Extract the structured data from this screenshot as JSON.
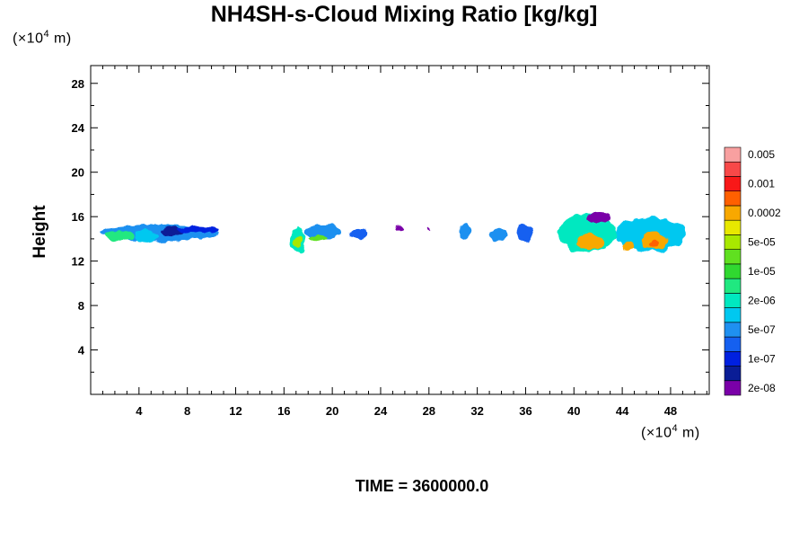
{
  "chart_data": {
    "type": "heatmap",
    "title": "NH4SH-s-Cloud Mixing Ratio [kg/kg]",
    "ylabel": "Height",
    "xlabel": "",
    "x_unit": {
      "prefix": "(×10",
      "exp": "4",
      "suffix": " m)"
    },
    "y_unit": {
      "prefix": "(×10",
      "exp": "4",
      "suffix": " m)"
    },
    "xlim": [
      0,
      51.2
    ],
    "ylim": [
      0,
      29.6
    ],
    "x_ticks": [
      4,
      8,
      12,
      16,
      20,
      24,
      28,
      32,
      36,
      40,
      44,
      48
    ],
    "y_ticks": [
      4,
      8,
      12,
      16,
      20,
      24,
      28
    ],
    "time_label": "TIME = 3600000.0",
    "colorbar": {
      "colors": [
        "#7a00a8",
        "#0a1d96",
        "#0020e0",
        "#1560f0",
        "#1f90f0",
        "#00c8f0",
        "#00e8c0",
        "#20e880",
        "#30d830",
        "#60e020",
        "#a8e800",
        "#e8e800",
        "#f8a800",
        "#ff6000",
        "#f81818",
        "#f84848",
        "#f8a0a0"
      ],
      "labels": [
        "2e-08",
        "1e-07",
        "5e-07",
        "2e-06",
        "1e-05",
        "5e-05",
        "0.0002",
        "0.001",
        "0.005"
      ]
    },
    "clouds": [
      {
        "x": [
          0.8,
          10.6
        ],
        "y": [
          13.8,
          15.3
        ],
        "level": 4
      },
      {
        "x": [
          1.2,
          3.5
        ],
        "y": [
          13.8,
          14.8
        ],
        "level": 7
      },
      {
        "x": [
          3.6,
          5.5
        ],
        "y": [
          13.6,
          14.8
        ],
        "level": 5
      },
      {
        "x": [
          5.8,
          7.6
        ],
        "y": [
          14.3,
          15.1
        ],
        "level": 1
      },
      {
        "x": [
          7.2,
          10.6
        ],
        "y": [
          14.5,
          15.2
        ],
        "level": 2
      },
      {
        "x": [
          16.5,
          17.8
        ],
        "y": [
          12.8,
          15.0
        ],
        "level": 6
      },
      {
        "x": [
          16.8,
          17.6
        ],
        "y": [
          13.2,
          14.2
        ],
        "level": 10
      },
      {
        "x": [
          17.8,
          20.7
        ],
        "y": [
          13.9,
          15.3
        ],
        "level": 4
      },
      {
        "x": [
          18.0,
          19.6
        ],
        "y": [
          13.8,
          14.4
        ],
        "level": 9
      },
      {
        "x": [
          21.5,
          23.0
        ],
        "y": [
          14.0,
          14.9
        ],
        "level": 3
      },
      {
        "x": [
          25.3,
          25.9
        ],
        "y": [
          14.7,
          15.1
        ],
        "level": 0
      },
      {
        "x": [
          27.8,
          28.1
        ],
        "y": [
          14.8,
          15.0
        ],
        "level": 0
      },
      {
        "x": [
          30.5,
          31.6
        ],
        "y": [
          14.0,
          15.4
        ],
        "level": 4
      },
      {
        "x": [
          33.0,
          34.4
        ],
        "y": [
          13.8,
          15.0
        ],
        "level": 4
      },
      {
        "x": [
          35.3,
          36.6
        ],
        "y": [
          13.7,
          15.4
        ],
        "level": 3
      },
      {
        "x": [
          38.7,
          43.5
        ],
        "y": [
          12.8,
          16.3
        ],
        "level": 6
      },
      {
        "x": [
          40.2,
          42.6
        ],
        "y": [
          13.0,
          14.4
        ],
        "level": 12
      },
      {
        "x": [
          41.0,
          43.0
        ],
        "y": [
          15.4,
          16.3
        ],
        "level": 0
      },
      {
        "x": [
          43.4,
          49.2
        ],
        "y": [
          12.9,
          15.9
        ],
        "level": 5
      },
      {
        "x": [
          45.6,
          47.8
        ],
        "y": [
          13.1,
          14.6
        ],
        "level": 12
      },
      {
        "x": [
          46.2,
          47.0
        ],
        "y": [
          13.2,
          13.9
        ],
        "level": 13
      },
      {
        "x": [
          44.2,
          45.0
        ],
        "y": [
          12.9,
          13.8
        ],
        "level": 12
      }
    ]
  }
}
